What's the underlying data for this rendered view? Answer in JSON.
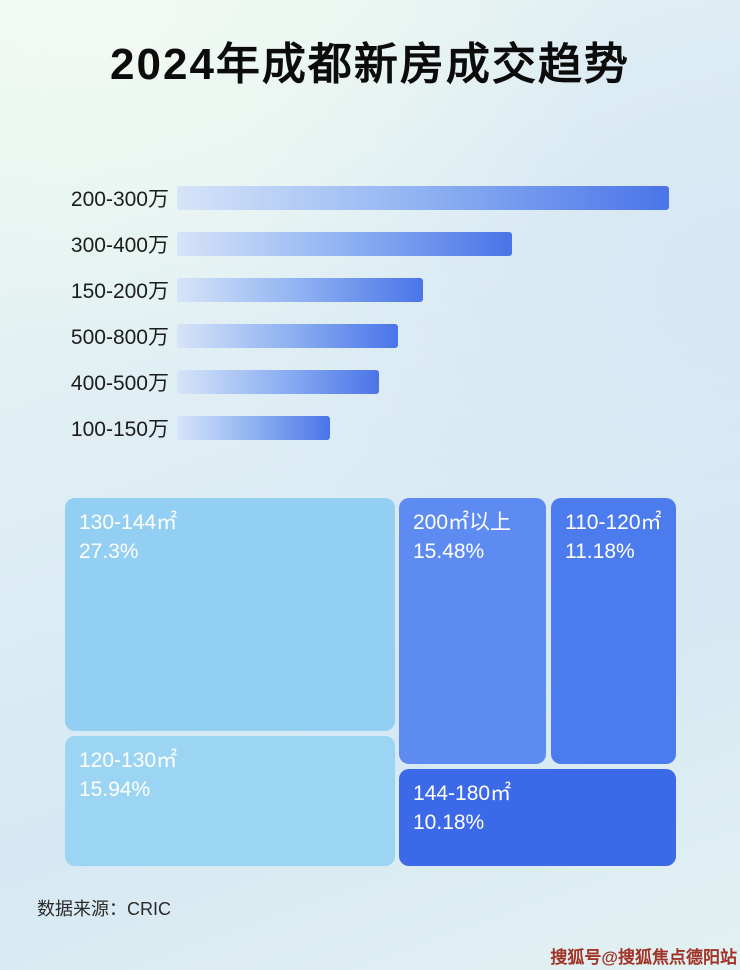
{
  "title": "2024年成都新房成交趋势",
  "footer": {
    "source": "数据来源：CRIC"
  },
  "watermark": "搜狐号@搜狐焦点德阳站",
  "colors": {
    "title_text": "#0c0c0c",
    "bar_gradient_start": "#d7e4f8",
    "bar_gradient_end": "#4a74e8",
    "watermark_red": "#a03226",
    "treemap_text": "#ffffff"
  },
  "chart_data": [
    {
      "type": "bar",
      "orientation": "horizontal",
      "categories": [
        "200-300万",
        "300-400万",
        "150-200万",
        "500-800万",
        "400-500万",
        "100-150万"
      ],
      "values": [
        100,
        68,
        50,
        45,
        41,
        31
      ],
      "value_scale": "relative bar length, longest bar = 100 (no numeric value labels shown in chart)",
      "bar_gradient": [
        "#d7e4f8",
        "#8fb2f2",
        "#4a74e8"
      ],
      "title": "",
      "xlabel": "",
      "ylabel": "",
      "grid": false,
      "legend": false
    },
    {
      "type": "treemap",
      "title": "",
      "items": [
        {
          "label": "130-144㎡",
          "value": 27.3,
          "display": "27.3%",
          "color": "#93cff2"
        },
        {
          "label": "120-130㎡",
          "value": 15.94,
          "display": "15.94%",
          "color": "#9cd5f4"
        },
        {
          "label": "200㎡以上",
          "value": 15.48,
          "display": "15.48%",
          "color": "#5e8bf1"
        },
        {
          "label": "110-120㎡",
          "value": 11.18,
          "display": "11.18%",
          "color": "#4c7bee"
        },
        {
          "label": "144-180㎡",
          "value": 10.18,
          "display": "10.18%",
          "color": "#3c69e7"
        }
      ]
    }
  ]
}
